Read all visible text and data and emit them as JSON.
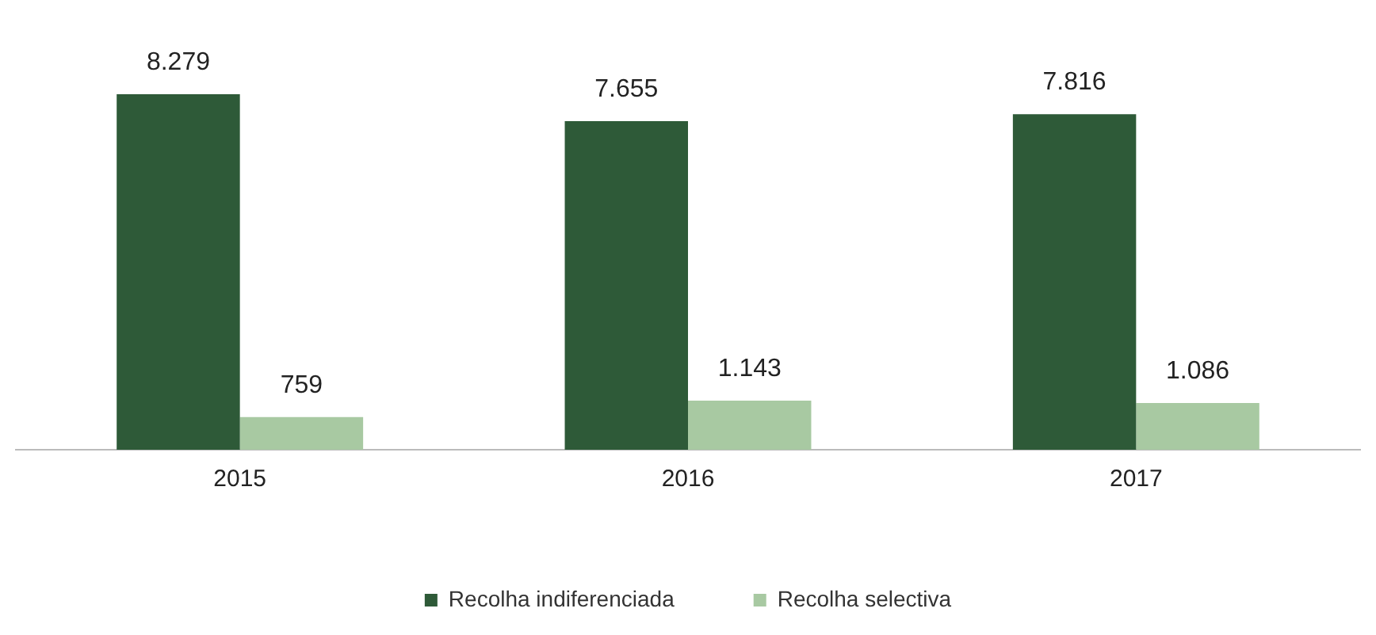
{
  "chart_data": {
    "type": "bar",
    "categories": [
      "2015",
      "2016",
      "2017"
    ],
    "series": [
      {
        "name": "Recolha indiferenciada",
        "color": "#2e5a38",
        "values": [
          8279,
          7655,
          7816
        ],
        "value_labels": [
          "8.279",
          "7.655",
          "7.816"
        ]
      },
      {
        "name": "Recolha selectiva",
        "color": "#a8c9a2",
        "values": [
          759,
          1143,
          1086
        ],
        "value_labels": [
          "759",
          "1.143",
          "1.086"
        ]
      }
    ],
    "legend": "bottom",
    "grid": false
  }
}
